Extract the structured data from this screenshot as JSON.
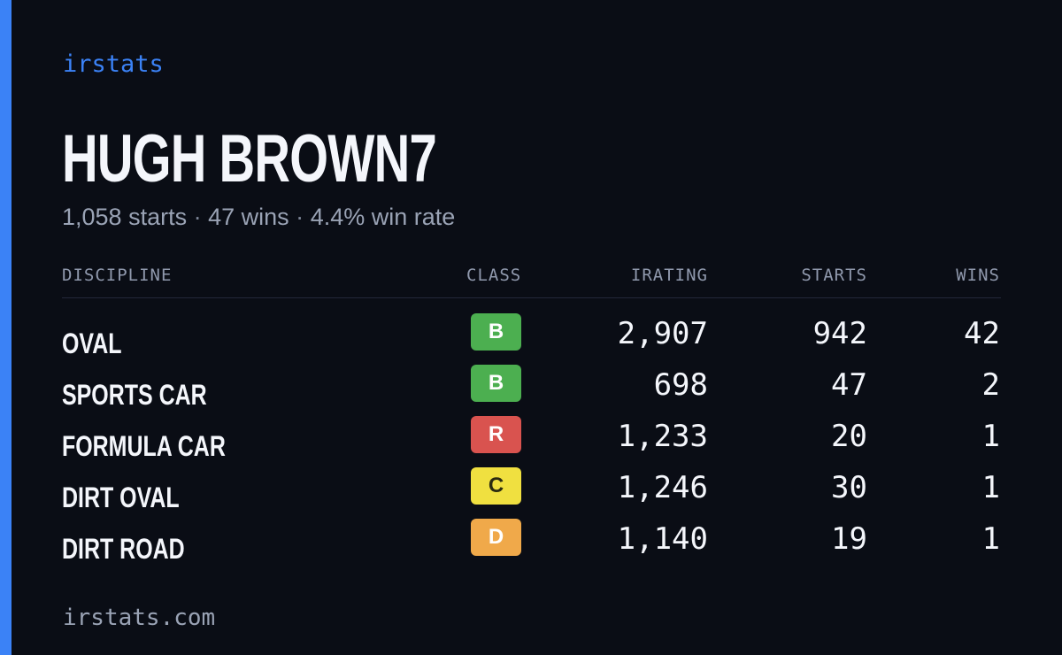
{
  "brand": "irstats",
  "driver": {
    "name": "HUGH BROWN7",
    "starts_text": "1,058 starts",
    "wins_text": "47 wins",
    "win_rate_text": "4.4% win rate",
    "separator": "·"
  },
  "table": {
    "headers": {
      "discipline": "DISCIPLINE",
      "class": "CLASS",
      "irating": "IRATING",
      "starts": "STARTS",
      "wins": "WINS"
    },
    "rows": [
      {
        "discipline": "OVAL",
        "class": "B",
        "class_color": "#4caf50",
        "class_text_color": "#ffffff",
        "irating": "2,907",
        "starts": "942",
        "wins": "42"
      },
      {
        "discipline": "SPORTS CAR",
        "class": "B",
        "class_color": "#4caf50",
        "class_text_color": "#ffffff",
        "irating": "698",
        "starts": "47",
        "wins": "2"
      },
      {
        "discipline": "FORMULA CAR",
        "class": "R",
        "class_color": "#d9534f",
        "class_text_color": "#ffffff",
        "irating": "1,233",
        "starts": "20",
        "wins": "1"
      },
      {
        "discipline": "DIRT OVAL",
        "class": "C",
        "class_color": "#f0e040",
        "class_text_color": "#2a2a10",
        "irating": "1,246",
        "starts": "30",
        "wins": "1"
      },
      {
        "discipline": "DIRT ROAD",
        "class": "D",
        "class_color": "#f0a94a",
        "class_text_color": "#ffffff",
        "irating": "1,140",
        "starts": "19",
        "wins": "1"
      }
    ]
  },
  "footer": "irstats.com",
  "colors": {
    "background": "#0a0d15",
    "accent": "#3b82f6"
  }
}
